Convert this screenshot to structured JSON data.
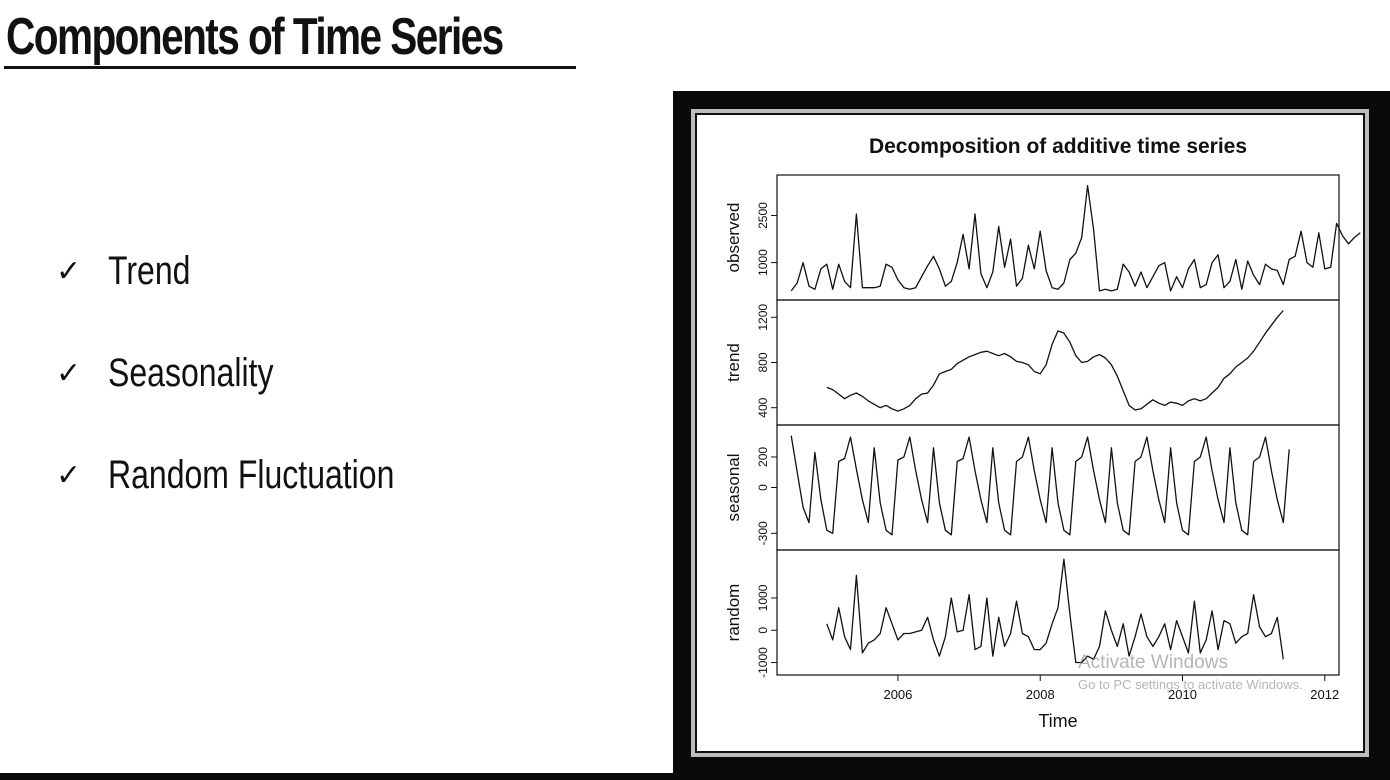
{
  "slide": {
    "title": "Components of Time Series",
    "bullets": [
      {
        "icon": "checkmark-icon",
        "label": "Trend"
      },
      {
        "icon": "checkmark-icon",
        "label": "Seasonality"
      },
      {
        "icon": "checkmark-icon",
        "label": "Random Fluctuation"
      }
    ],
    "check_glyph": "✓"
  },
  "watermark": {
    "title": "Activate Windows",
    "subtitle": "Go to PC settings to activate Windows."
  },
  "chart_data": {
    "type": "line",
    "title": "Decomposition of additive time series",
    "xlabel": "Time",
    "xlim": [
      2004.3,
      2012.2
    ],
    "x_ticks": [
      2006,
      2008,
      2010,
      2012
    ],
    "grid": false,
    "legend": "none",
    "line_color": "#111111",
    "panels": [
      {
        "name": "observed",
        "ylabel": "observed",
        "ylim": [
          0,
          3600
        ],
        "y_ticks": [
          1000,
          2500
        ],
        "y_tick_labels": [
          "1000",
          "2500"
        ],
        "start": 2004.5,
        "step": 0.0833333,
        "values": [
          100,
          350,
          1000,
          250,
          150,
          800,
          950,
          150,
          950,
          400,
          200,
          2550,
          200,
          200,
          200,
          250,
          950,
          850,
          450,
          200,
          150,
          200,
          550,
          900,
          1200,
          800,
          250,
          400,
          1000,
          1900,
          800,
          2550,
          650,
          200,
          700,
          2150,
          850,
          1750,
          250,
          500,
          1550,
          800,
          2000,
          750,
          200,
          150,
          350,
          1100,
          1300,
          1800,
          3450,
          2050,
          100,
          150,
          100,
          150,
          950,
          700,
          250,
          700,
          200,
          550,
          900,
          1000,
          100,
          550,
          200,
          800,
          1100,
          200,
          300,
          1000,
          1250,
          200,
          400,
          1100,
          150,
          1050,
          600,
          300,
          950,
          800,
          750,
          300,
          1100,
          1200,
          2000,
          1000,
          850,
          1950,
          800,
          850,
          2250,
          1850,
          1600,
          1800,
          1950
        ]
      },
      {
        "name": "trend",
        "ylabel": "trend",
        "ylim": [
          300,
          1300
        ],
        "y_ticks": [
          400,
          800,
          1200
        ],
        "y_tick_labels": [
          "400",
          "800",
          "1200"
        ],
        "start": 2005.0,
        "step": 0.0833333,
        "values": [
          580,
          560,
          520,
          480,
          510,
          530,
          500,
          460,
          430,
          400,
          420,
          390,
          370,
          390,
          420,
          480,
          520,
          530,
          600,
          700,
          720,
          740,
          790,
          820,
          850,
          870,
          890,
          900,
          880,
          860,
          880,
          850,
          810,
          800,
          780,
          720,
          700,
          780,
          960,
          1080,
          1060,
          980,
          860,
          800,
          810,
          850,
          870,
          840,
          780,
          680,
          550,
          420,
          380,
          390,
          430,
          470,
          440,
          420,
          450,
          440,
          420,
          460,
          480,
          460,
          480,
          530,
          580,
          660,
          700,
          760,
          800,
          840,
          900,
          980,
          1060,
          1130,
          1200,
          1260
        ]
      },
      {
        "name": "seasonal",
        "ylabel": "seasonal",
        "ylim": [
          -370,
          370
        ],
        "y_ticks": [
          -300,
          0,
          200
        ],
        "y_tick_labels": [
          "-300",
          "0",
          "200"
        ],
        "start": 2004.5,
        "step": 0.0833333,
        "values": [
          340,
          100,
          -130,
          -230,
          230,
          -80,
          -280,
          -300,
          170,
          190,
          330,
          120,
          -80,
          -230,
          260,
          -100,
          -280,
          -310,
          180,
          200,
          330,
          110,
          -80,
          -230,
          260,
          -100,
          -280,
          -310,
          170,
          190,
          330,
          110,
          -80,
          -230,
          260,
          -100,
          -280,
          -310,
          170,
          200,
          330,
          110,
          -80,
          -230,
          260,
          -100,
          -280,
          -310,
          170,
          200,
          330,
          110,
          -80,
          -230,
          260,
          -100,
          -280,
          -310,
          170,
          200,
          330,
          110,
          -80,
          -230,
          260,
          -100,
          -280,
          -310,
          170,
          200,
          330,
          110,
          -80,
          -230,
          260,
          -100,
          -280,
          -310,
          170,
          200,
          330,
          110,
          -80,
          -230,
          250
        ]
      },
      {
        "name": "random",
        "ylabel": "random",
        "ylim": [
          -1200,
          2300
        ],
        "y_ticks": [
          -1000,
          0,
          1000
        ],
        "y_tick_labels": [
          "-1000",
          "0",
          "1000"
        ],
        "start": 2005.0,
        "step": 0.0833333,
        "values": [
          200,
          -300,
          700,
          -200,
          -600,
          1700,
          -700,
          -400,
          -300,
          -100,
          700,
          200,
          -300,
          -100,
          -100,
          -50,
          0,
          400,
          -300,
          -800,
          -200,
          1000,
          -50,
          0,
          1100,
          -600,
          -500,
          1000,
          -800,
          400,
          -500,
          -100,
          900,
          -100,
          -200,
          -600,
          -600,
          -400,
          200,
          700,
          2200,
          500,
          -1000,
          -1000,
          -800,
          -900,
          -500,
          600,
          0,
          -500,
          200,
          -800,
          -200,
          500,
          -200,
          -500,
          -200,
          200,
          -600,
          300,
          -200,
          -700,
          900,
          -700,
          -300,
          600,
          -600,
          300,
          200,
          -400,
          -200,
          -100,
          1100,
          100,
          -200,
          -100,
          400,
          -900
        ]
      }
    ]
  }
}
